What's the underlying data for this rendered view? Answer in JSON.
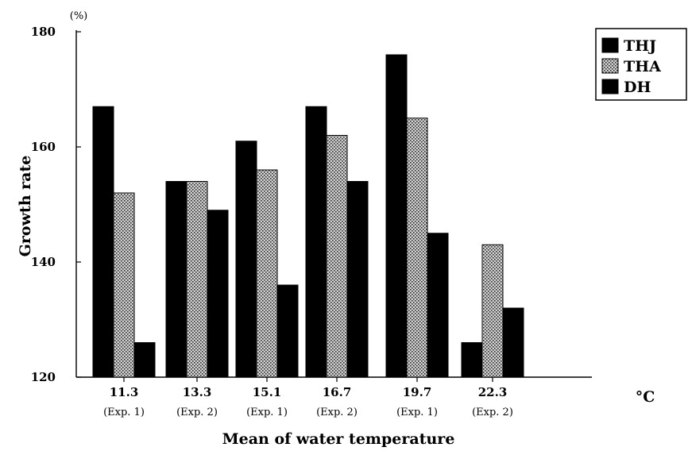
{
  "chart_data": {
    "type": "bar",
    "title": "",
    "xlabel": "Mean   of   water   temperature",
    "ylabel": "Growth   rate",
    "y_unit": "(%)",
    "x_unit": "°C",
    "ylim": [
      120,
      180
    ],
    "yticks": [
      120,
      140,
      160,
      180
    ],
    "categories": [
      "11.3",
      "13.3",
      "15.1",
      "16.7",
      "19.7",
      "22.3"
    ],
    "category_sublabels": [
      "(Exp. 1)",
      "(Exp. 2)",
      "(Exp. 1)",
      "(Exp. 2)",
      "(Exp. 1)",
      "(Exp. 2)"
    ],
    "series": [
      {
        "name": "THJ",
        "values": [
          167,
          154,
          161,
          167,
          176,
          126
        ]
      },
      {
        "name": "THA",
        "values": [
          152,
          154,
          156,
          162,
          165,
          143
        ]
      },
      {
        "name": "DH",
        "values": [
          126,
          149,
          136,
          154,
          145,
          132
        ]
      }
    ],
    "series_fills": [
      "solid-black",
      "dotted-gray",
      "solid-black"
    ],
    "grid": false,
    "legend_position": "top-right"
  }
}
